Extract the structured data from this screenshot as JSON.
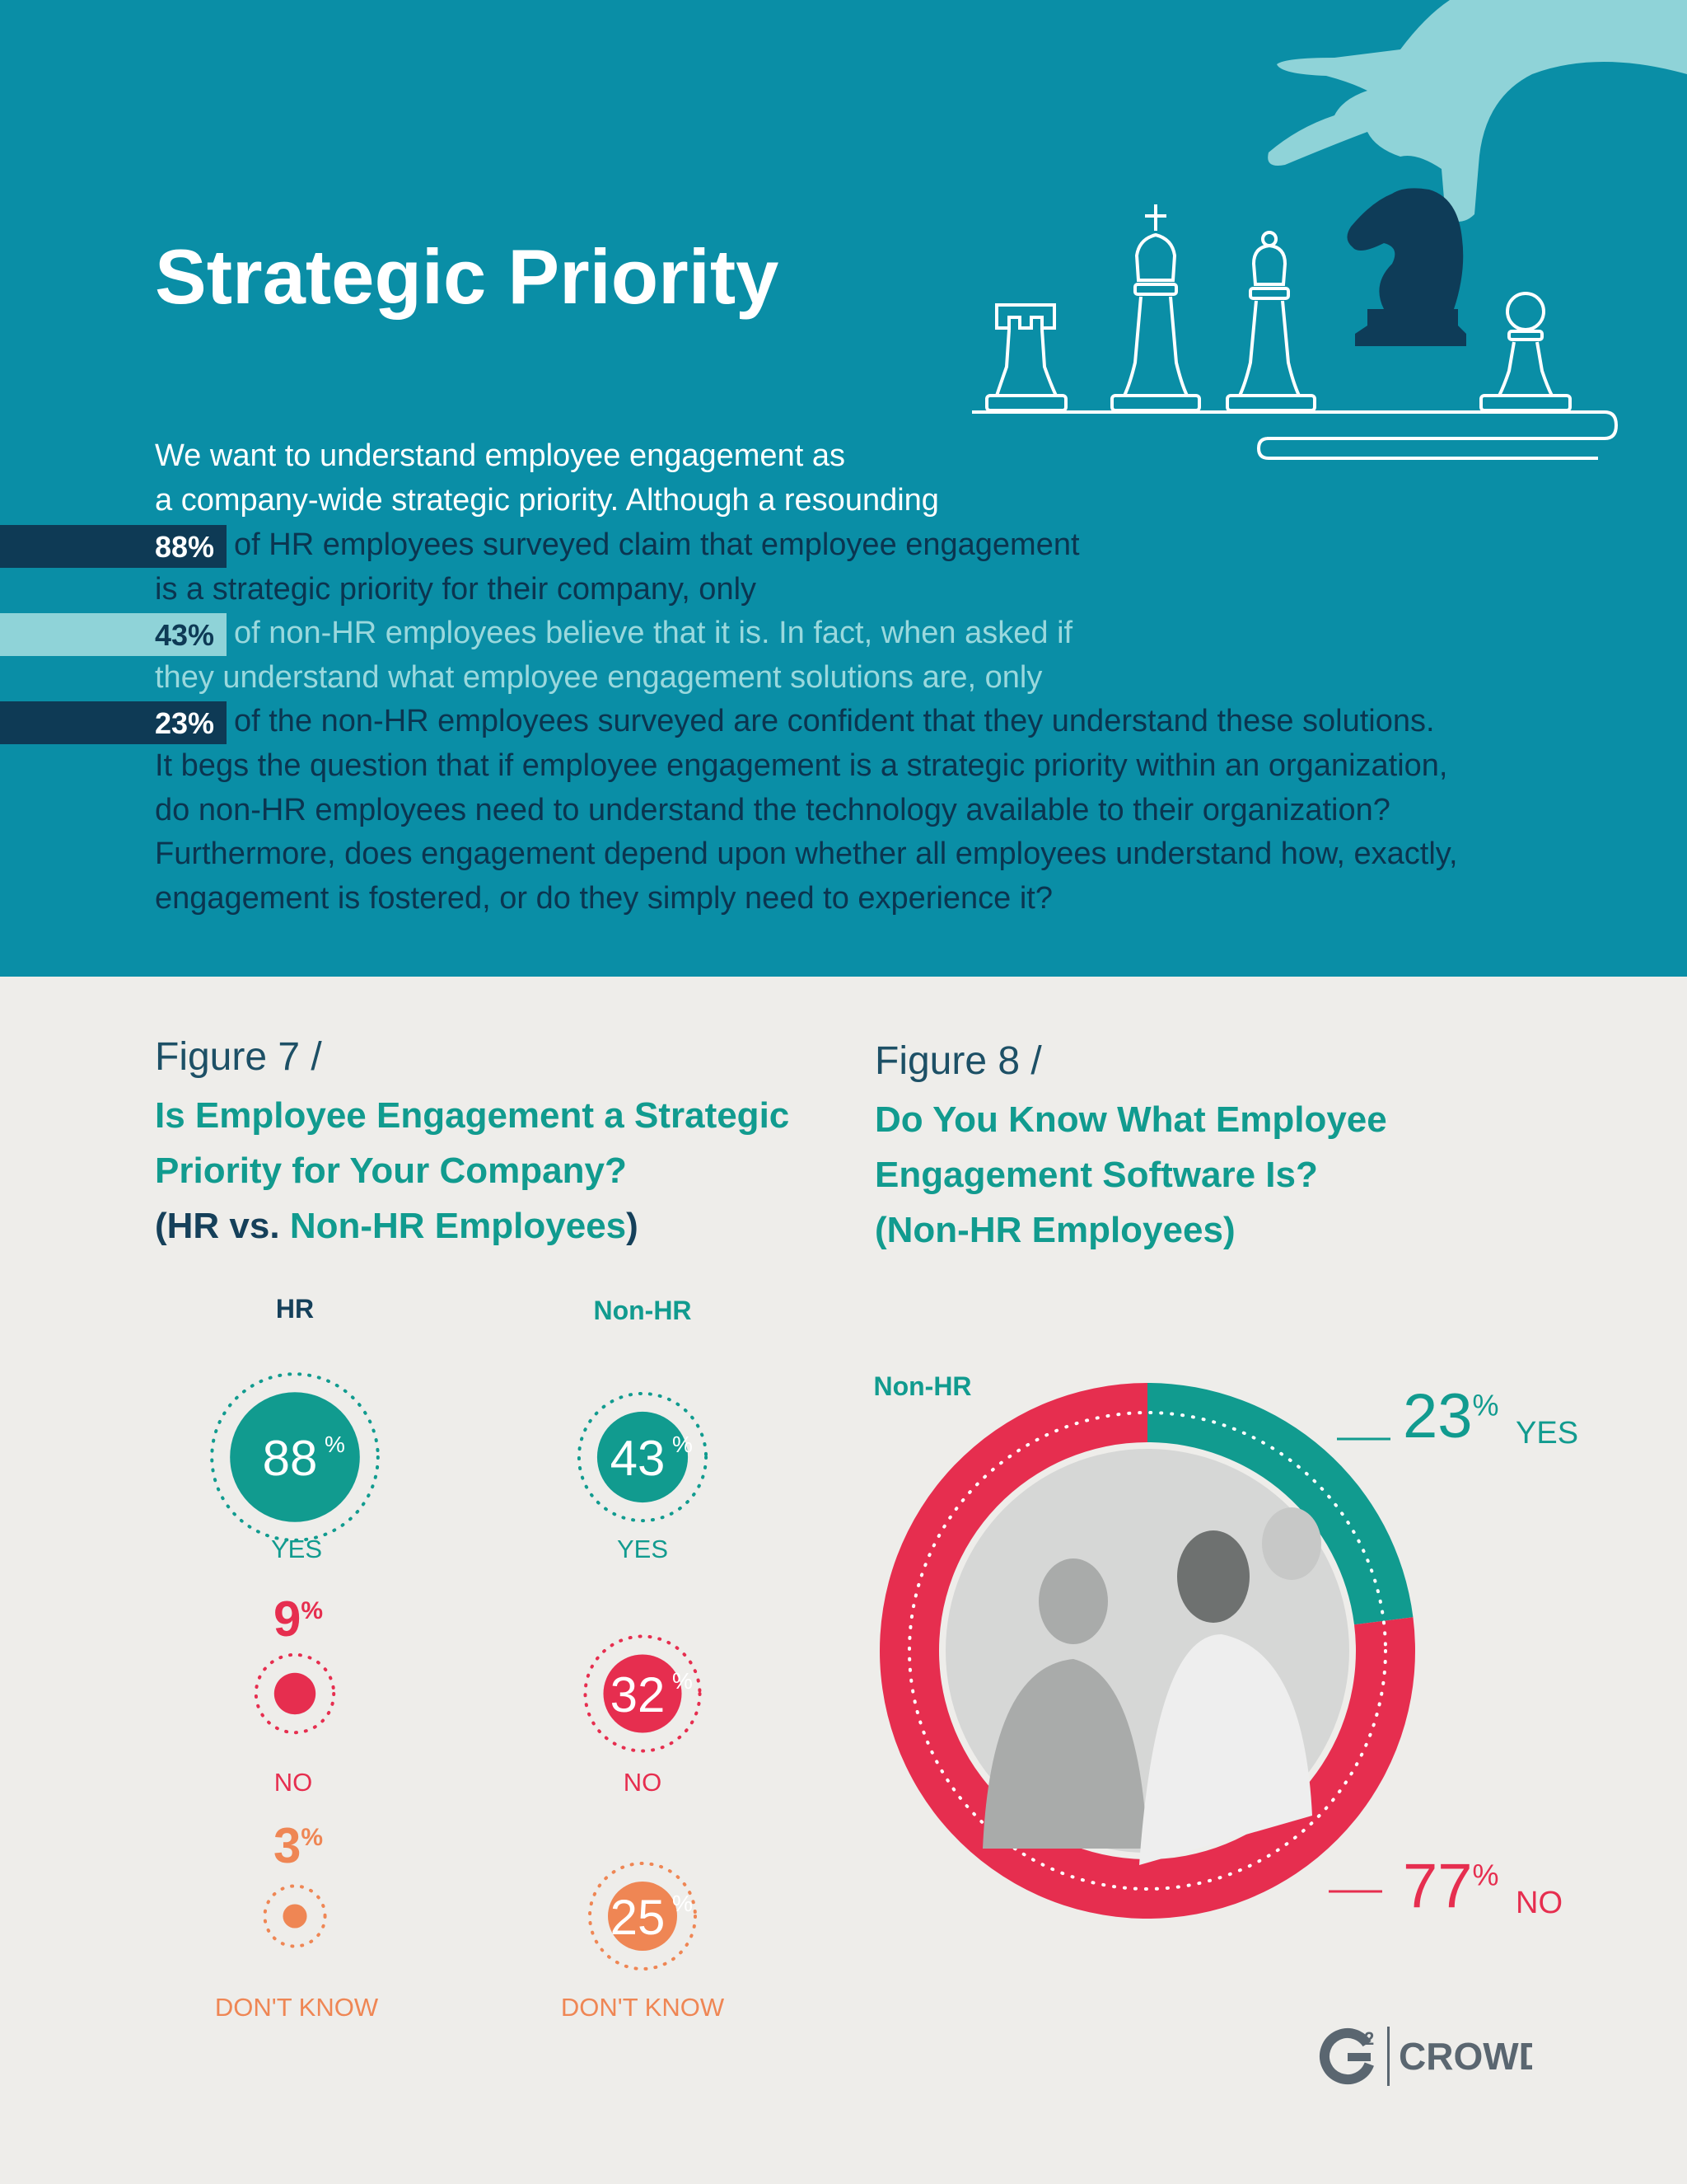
{
  "hero": {
    "title": "Strategic Priority",
    "lines": [
      "We want to understand employee engagement as",
      "a company-wide strategic priority. Although a resounding",
      "of HR employees surveyed claim that employee engagement",
      "is a strategic priority for their company, only",
      "of non-HR employees believe that it is. In fact, when asked if",
      "they understand what employee engagement solutions are, only",
      "of the non-HR employees surveyed are confident that they understand these solutions.",
      "It begs the question that if employee engagement is a strategic priority within an organization,",
      "do non-HR employees need to understand the technology available to their organization?",
      "Furthermore, does engagement depend upon whether all employees understand how, exactly,",
      "engagement is fostered, or do they simply need to experience it?"
    ],
    "stats": [
      "88%",
      "43%",
      "23%"
    ]
  },
  "colors": {
    "teal": "#119b8f",
    "red": "#e62e4f",
    "orange": "#ef8654",
    "navy": "#15405a",
    "hero_bg": "#0a8ea6"
  },
  "figure7": {
    "label": "Figure 7 /",
    "title_lines": [
      "Is Employee Engagement a Strategic",
      "Priority for Your Company?"
    ],
    "title_paren_open": "(",
    "title_hr": "HR vs.",
    "title_nonhr": "Non-HR Employees",
    "title_paren_close": ")"
  },
  "figure8": {
    "label": "Figure 8 /",
    "title_lines": [
      "Do You Know What Employee",
      "Engagement Software Is?",
      "(Non-HR Employees)"
    ],
    "group_label": "Non-HR"
  },
  "chart_data": [
    {
      "type": "bubble",
      "title": "Is Employee Engagement a Strategic Priority for Your Company? (HR vs. Non-HR Employees)",
      "categories": [
        "YES",
        "NO",
        "DON'T KNOW"
      ],
      "groups": [
        {
          "name": "HR",
          "values": [
            88,
            9,
            3
          ],
          "labels": [
            "88",
            "9",
            "3"
          ]
        },
        {
          "name": "Non-HR",
          "values": [
            43,
            32,
            25
          ],
          "labels": [
            "43",
            "32",
            "25"
          ]
        }
      ],
      "unit": "%"
    },
    {
      "type": "pie",
      "title": "Do You Know What Employee Engagement Software Is? (Non-HR Employees)",
      "series_name": "Non-HR",
      "slices": [
        {
          "label": "YES",
          "value": 23,
          "display": "23"
        },
        {
          "label": "NO",
          "value": 77,
          "display": "77"
        }
      ],
      "unit": "%"
    }
  ],
  "logo": {
    "mark": "G",
    "superscript": "2",
    "text": "CROWD"
  }
}
